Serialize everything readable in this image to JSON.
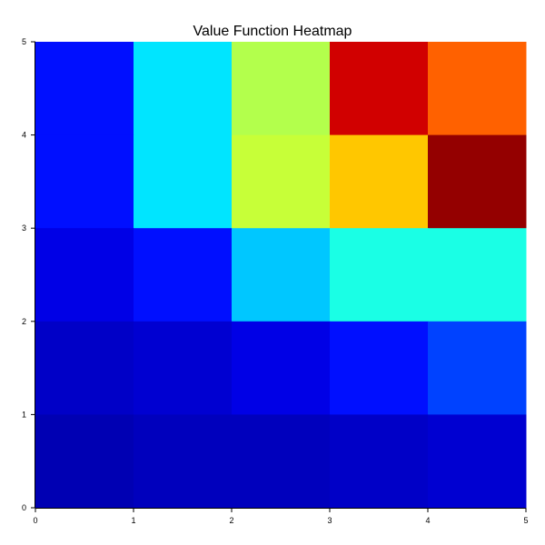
{
  "chart_data": {
    "type": "heatmap",
    "title": "Value Function Heatmap",
    "xlabel": "",
    "ylabel": "",
    "xlim": [
      0,
      5
    ],
    "ylim": [
      0,
      5
    ],
    "x_ticks": [
      "0",
      "1",
      "2",
      "3",
      "4",
      "5"
    ],
    "y_ticks": [
      "0",
      "1",
      "2",
      "3",
      "4",
      "5"
    ],
    "grid": false,
    "legend": "none",
    "colormap": "jet",
    "rows_top_to_bottom": [
      [
        0.14,
        0.35,
        0.55,
        0.92,
        0.78
      ],
      [
        0.14,
        0.35,
        0.57,
        0.68,
        0.98
      ],
      [
        0.1,
        0.14,
        0.32,
        0.4,
        0.4
      ],
      [
        0.07,
        0.08,
        0.1,
        0.14,
        0.19
      ],
      [
        0.05,
        0.06,
        0.06,
        0.07,
        0.08
      ]
    ]
  }
}
